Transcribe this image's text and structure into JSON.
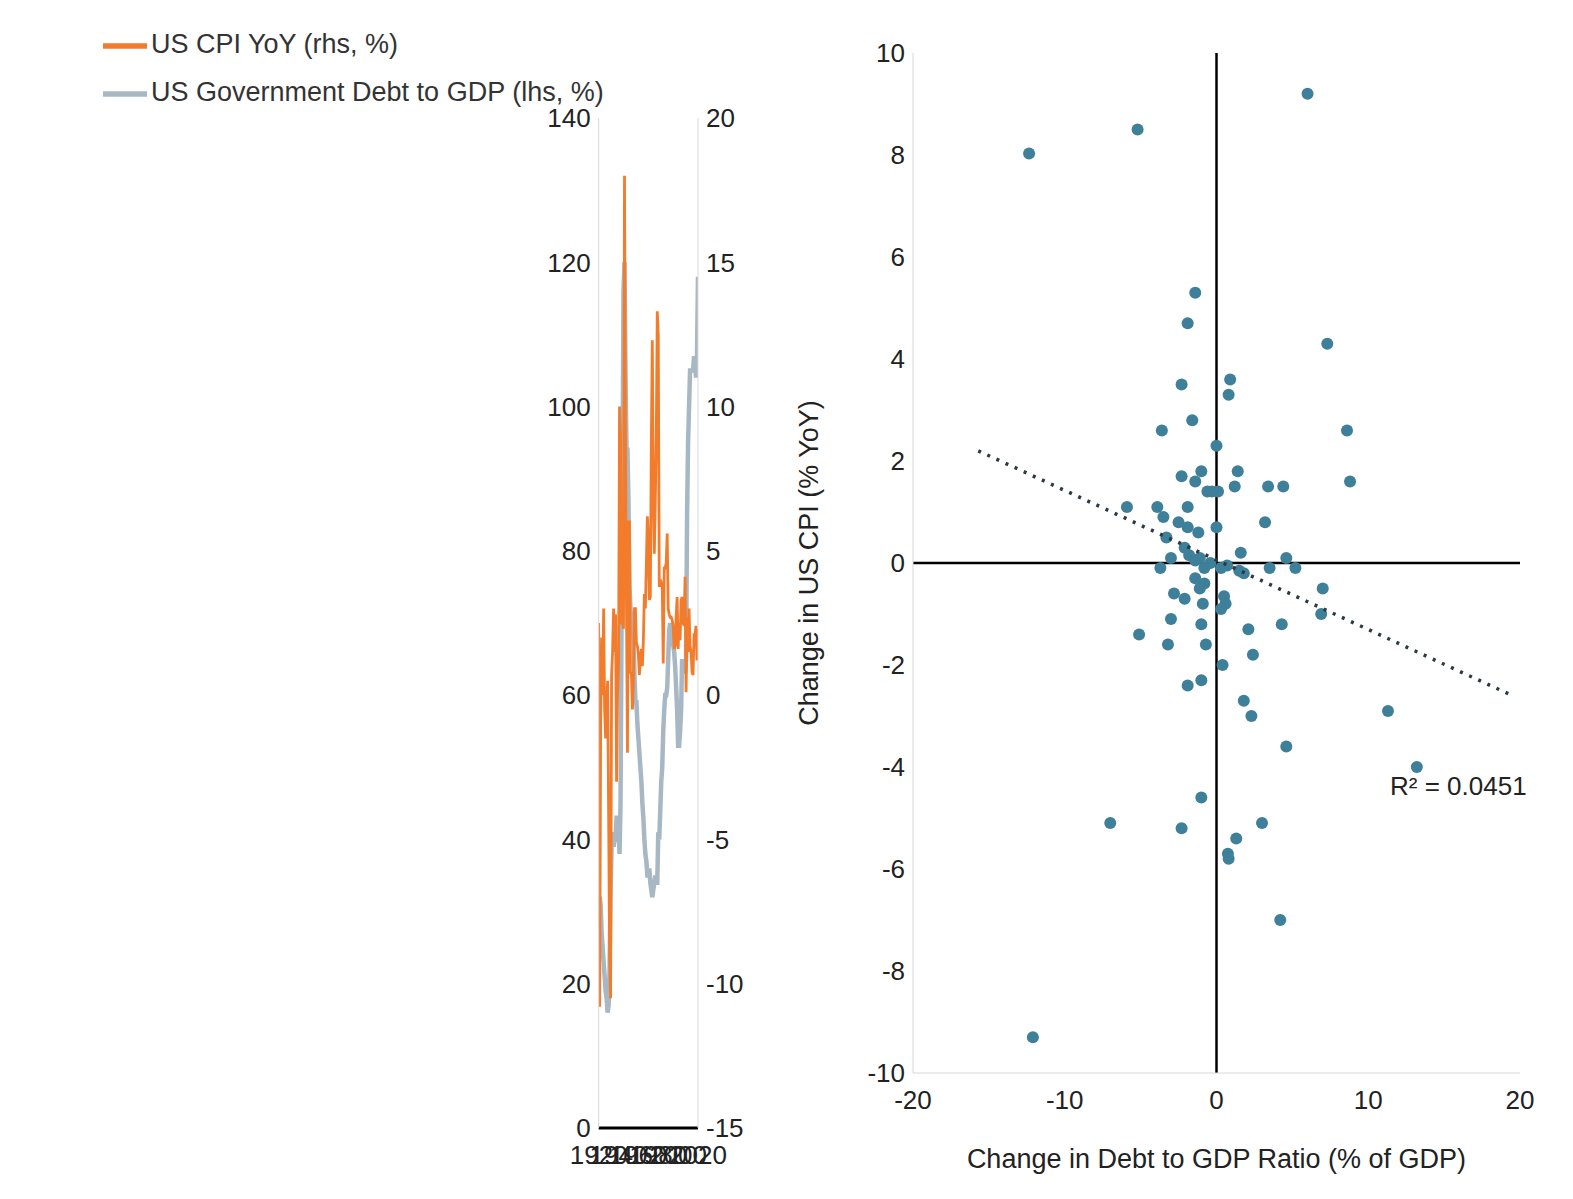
{
  "chart_data": [
    {
      "type": "line",
      "x": [
        1920,
        1921,
        1922,
        1923,
        1924,
        1925,
        1926,
        1927,
        1928,
        1929,
        1930,
        1931,
        1932,
        1933,
        1934,
        1935,
        1936,
        1937,
        1938,
        1939,
        1940,
        1941,
        1942,
        1943,
        1944,
        1945,
        1946,
        1947,
        1948,
        1949,
        1950,
        1951,
        1952,
        1953,
        1954,
        1955,
        1956,
        1957,
        1958,
        1959,
        1960,
        1961,
        1962,
        1963,
        1964,
        1965,
        1966,
        1967,
        1968,
        1969,
        1970,
        1971,
        1972,
        1973,
        1974,
        1975,
        1976,
        1977,
        1978,
        1979,
        1980,
        1981,
        1982,
        1983,
        1984,
        1985,
        1986,
        1987,
        1988,
        1989,
        1990,
        1991,
        1992,
        1993,
        1994,
        1995,
        1996,
        1997,
        1998,
        1999,
        2000,
        2001,
        2002,
        2003,
        2004,
        2005,
        2006,
        2007,
        2008,
        2009,
        2010,
        2011,
        2012,
        2013,
        2014,
        2015,
        2016,
        2017,
        2018,
        2019,
        2020
      ],
      "xlim": [
        1920,
        2020
      ],
      "xticks": [
        1920,
        1940,
        1960,
        1980,
        2000,
        2020
      ],
      "ylim": [
        0,
        140
      ],
      "yticks": [
        0,
        20,
        40,
        60,
        80,
        100,
        120,
        140
      ],
      "y2lim": [
        -15,
        20
      ],
      "y2ticks": [
        -15,
        -10,
        -5,
        0,
        5,
        10,
        15,
        20
      ],
      "legend": "upper left",
      "series": [
        {
          "name": "US Government Debt to GDP (lhs, %)",
          "color": "#a7b8c4",
          "values": [
            28,
            32,
            31,
            27,
            25,
            23,
            21,
            19,
            18,
            16,
            17,
            22,
            33,
            39,
            41,
            39,
            40,
            40,
            43,
            43,
            42,
            38,
            45,
            70,
            92,
            116,
            120,
            105,
            94,
            94,
            87,
            75,
            72,
            70,
            71,
            68,
            63,
            59,
            59,
            56,
            54,
            52,
            50,
            48,
            45,
            43,
            40,
            38,
            37,
            35,
            35,
            36,
            34,
            33,
            32,
            33,
            34,
            35,
            34,
            34,
            41,
            40,
            44,
            48,
            50,
            55,
            58,
            60,
            60,
            61,
            65,
            69,
            70,
            69,
            68,
            67,
            66,
            64,
            61,
            58,
            53,
            53,
            55,
            58,
            65,
            64,
            64,
            63,
            65,
            85,
            95,
            100,
            105,
            105,
            105,
            105,
            107,
            106,
            104,
            107,
            118
          ]
        },
        {
          "name": "US CPI YoY (rhs, %)",
          "color": "#f27c2c",
          "axis": "y2",
          "values": [
            2.5,
            -10.8,
            -1,
            2,
            0,
            3,
            -0.5,
            -1.5,
            -0.5,
            0.5,
            -4,
            -9,
            -10.5,
            0.7,
            1.5,
            3,
            1.5,
            2.8,
            -3,
            0,
            1,
            10,
            9,
            2.5,
            2.5,
            2.3,
            18,
            9,
            3,
            -2,
            6,
            6,
            0.8,
            0.7,
            -0.5,
            0.5,
            3,
            3,
            1.8,
            1.7,
            1.4,
            0.7,
            1.3,
            1.6,
            1,
            1.9,
            3.5,
            3,
            4.5,
            6.2,
            5.5,
            3.3,
            3.4,
            8.7,
            12.3,
            6.9,
            4.9,
            6.7,
            9,
            13.3,
            12.5,
            3.8,
            3.8,
            3.9,
            3.8,
            1.1,
            4.4,
            4.4,
            4.6,
            5.6,
            3,
            2.8,
            2.7,
            2.7,
            2.6,
            2.4,
            1.6,
            1.7,
            2.7,
            3.4,
            1.6,
            2.5,
            1.9,
            3.3,
            3.4,
            2.5,
            2.4,
            4.1,
            0.1,
            2.7,
            1.5,
            3,
            1.7,
            1.5,
            0.8,
            0.7,
            2.1,
            2.1,
            2.4,
            1.2,
            2.3
          ]
        }
      ]
    },
    {
      "type": "scatter",
      "x_label": "Change in Debt to GDP Ratio (% of GDP)",
      "y_label": "Change in US CPI (% YoY)",
      "xlim": [
        -20,
        20
      ],
      "xticks": [
        -20,
        -10,
        0,
        10,
        20
      ],
      "ylim": [
        -10,
        10
      ],
      "yticks": [
        -10,
        -8,
        -6,
        -4,
        -2,
        0,
        2,
        4,
        6,
        8,
        10
      ],
      "color": "#3e7f99",
      "marker": "circle",
      "x": [
        -12.35,
        -5.2,
        6,
        -1.4,
        -1.9,
        7.3,
        0.9,
        0.8,
        -2.3,
        -1.6,
        -3.6,
        8.6,
        0,
        8.8,
        1.4,
        -1,
        -2.3,
        -1.4,
        1.2,
        3.4,
        4.4,
        -0.6,
        -0.3,
        0.1,
        -5.9,
        -3.9,
        -1.9,
        -3.5,
        3.2,
        -2.5,
        -1.9,
        -1.2,
        0,
        -3.3,
        -3,
        -2.1,
        -1.8,
        -1.4,
        -1.1,
        1.6,
        4.6,
        -0.8,
        -0.4,
        0.3,
        0.7,
        -3.7,
        1.5,
        3.5,
        5.2,
        1.8,
        -1.4,
        -0.8,
        -1.1,
        -2.8,
        -2.1,
        0.5,
        0.6,
        -0.9,
        0.3,
        7,
        6.9,
        -3,
        -1,
        4.3,
        2.1,
        -5.1,
        -3.2,
        -0.7,
        2.4,
        0.4,
        -1,
        -1.9,
        1.8,
        2.3,
        11.3,
        4.6,
        13.2,
        -1,
        -7,
        -2.3,
        3,
        1.3,
        0.75,
        0.8,
        4.2,
        -12.1
      ],
      "values": [
        8.03,
        8.5,
        9.2,
        5.3,
        4.7,
        4.3,
        3.6,
        3.3,
        3.5,
        2.8,
        2.6,
        2.6,
        2.3,
        1.6,
        1.8,
        1.8,
        1.7,
        1.6,
        1.5,
        1.5,
        1.5,
        1.4,
        1.4,
        1.4,
        1.1,
        1.1,
        1.1,
        0.9,
        0.8,
        0.8,
        0.7,
        0.6,
        0.7,
        0.5,
        0.1,
        0.3,
        0.15,
        0.05,
        0.1,
        0.2,
        0.1,
        -0.1,
        0,
        -0.1,
        -0.05,
        -0.1,
        -0.15,
        -0.1,
        -0.1,
        -0.2,
        -0.3,
        -0.4,
        -0.5,
        -0.6,
        -0.7,
        -0.65,
        -0.8,
        -0.8,
        -0.9,
        -0.5,
        -1,
        -1.1,
        -1.2,
        -1.2,
        -1.3,
        -1.4,
        -1.6,
        -1.6,
        -1.8,
        -2,
        -2.3,
        -2.4,
        -2.7,
        -3,
        -2.9,
        -3.6,
        -4,
        -4.6,
        -5.1,
        -5.2,
        -5.1,
        -5.4,
        -5.7,
        -5.8,
        -7,
        -9.3
      ],
      "trendline": {
        "x": [
          -15.7,
          19.5
        ],
        "values": [
          2.2,
          -2.6
        ],
        "color": "#2b3a42",
        "line_style": "dotted"
      },
      "annotations": [
        "R² = 0.0451"
      ]
    }
  ]
}
